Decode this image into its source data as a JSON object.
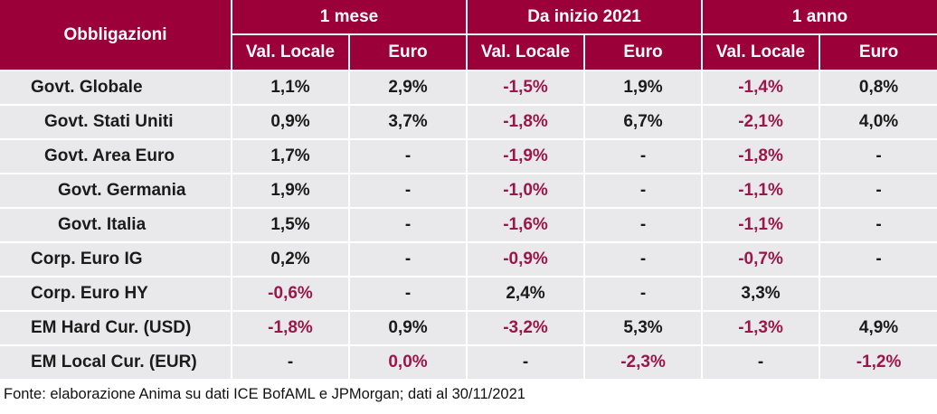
{
  "header": {
    "corner": "Obbligazioni",
    "groups": [
      "1 mese",
      "Da inizio 2021",
      "1 anno"
    ],
    "subheaders": [
      "Val. Locale",
      "Euro",
      "Val. Locale",
      "Euro",
      "Val. Locale",
      "Euro"
    ]
  },
  "rows": [
    {
      "label": "Govt. Globale",
      "indent": 0,
      "values": [
        {
          "v": "1,1%",
          "neg": false
        },
        {
          "v": "2,9%",
          "neg": false
        },
        {
          "v": "-1,5%",
          "neg": true
        },
        {
          "v": "1,9%",
          "neg": false
        },
        {
          "v": "-1,4%",
          "neg": true
        },
        {
          "v": "0,8%",
          "neg": false
        }
      ]
    },
    {
      "label": "Govt. Stati Uniti",
      "indent": 1,
      "values": [
        {
          "v": "0,9%",
          "neg": false
        },
        {
          "v": "3,7%",
          "neg": false
        },
        {
          "v": "-1,8%",
          "neg": true
        },
        {
          "v": "6,7%",
          "neg": false
        },
        {
          "v": "-2,1%",
          "neg": true
        },
        {
          "v": "4,0%",
          "neg": false
        }
      ]
    },
    {
      "label": "Govt. Area Euro",
      "indent": 1,
      "values": [
        {
          "v": "1,7%",
          "neg": false
        },
        {
          "v": "-",
          "neg": false
        },
        {
          "v": "-1,9%",
          "neg": true
        },
        {
          "v": "-",
          "neg": false
        },
        {
          "v": "-1,8%",
          "neg": true
        },
        {
          "v": "-",
          "neg": false
        }
      ]
    },
    {
      "label": "Govt. Germania",
      "indent": 2,
      "values": [
        {
          "v": "1,9%",
          "neg": false
        },
        {
          "v": "-",
          "neg": false
        },
        {
          "v": "-1,0%",
          "neg": true
        },
        {
          "v": "-",
          "neg": false
        },
        {
          "v": "-1,1%",
          "neg": true
        },
        {
          "v": "-",
          "neg": false
        }
      ]
    },
    {
      "label": "Govt. Italia",
      "indent": 2,
      "values": [
        {
          "v": "1,5%",
          "neg": false
        },
        {
          "v": "-",
          "neg": false
        },
        {
          "v": "-1,6%",
          "neg": true
        },
        {
          "v": "-",
          "neg": false
        },
        {
          "v": "-1,1%",
          "neg": true
        },
        {
          "v": "-",
          "neg": false
        }
      ]
    },
    {
      "label": "Corp. Euro IG",
      "indent": 0,
      "values": [
        {
          "v": "0,2%",
          "neg": false
        },
        {
          "v": "-",
          "neg": false
        },
        {
          "v": "-0,9%",
          "neg": true
        },
        {
          "v": "-",
          "neg": false
        },
        {
          "v": "-0,7%",
          "neg": true
        },
        {
          "v": "-",
          "neg": false
        }
      ]
    },
    {
      "label": "Corp. Euro HY",
      "indent": 0,
      "values": [
        {
          "v": "-0,6%",
          "neg": true
        },
        {
          "v": "-",
          "neg": false
        },
        {
          "v": "2,4%",
          "neg": false
        },
        {
          "v": "-",
          "neg": false
        },
        {
          "v": "3,3%",
          "neg": false
        },
        {
          "v": "",
          "neg": false
        }
      ]
    },
    {
      "label": "EM Hard Cur. (USD)",
      "indent": 0,
      "values": [
        {
          "v": "-1,8%",
          "neg": true
        },
        {
          "v": "0,9%",
          "neg": false
        },
        {
          "v": "-3,2%",
          "neg": true
        },
        {
          "v": "5,3%",
          "neg": false
        },
        {
          "v": "-1,3%",
          "neg": true
        },
        {
          "v": "4,9%",
          "neg": false
        }
      ]
    },
    {
      "label": "EM Local Cur. (EUR)",
      "indent": 0,
      "values": [
        {
          "v": "-",
          "neg": false
        },
        {
          "v": "0,0%",
          "neg": true
        },
        {
          "v": "-",
          "neg": false
        },
        {
          "v": "-2,3%",
          "neg": true
        },
        {
          "v": "-",
          "neg": false
        },
        {
          "v": "-1,2%",
          "neg": true
        }
      ]
    }
  ],
  "source": "Fonte: elaborazione Anima su dati ICE BofAML e JPMorgan; dati al 30/11/2021",
  "colors": {
    "header_bg": "#9b0038",
    "row_bg": "#e9e9eb",
    "negative": "#9b1748",
    "text": "#1b1b1b"
  }
}
